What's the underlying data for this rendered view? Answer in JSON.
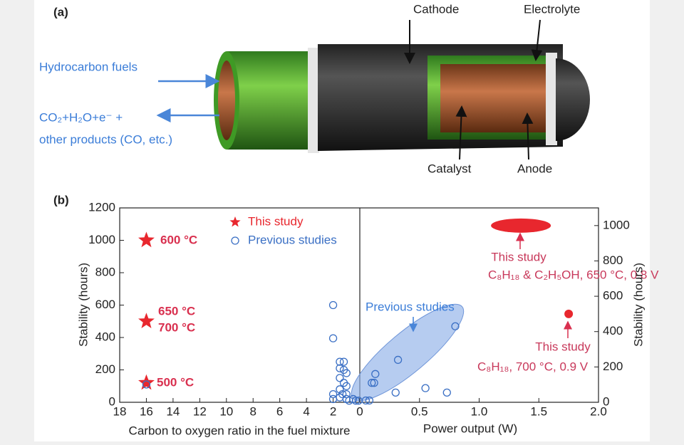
{
  "panel_a": {
    "label": "(a)",
    "cathode": "Cathode",
    "electrolyte": "Electrolyte",
    "fuel_in": "Hydrocarbon fuels",
    "products_line1": "CO₂+H₂O+e⁻ +",
    "products_line2": "other products (CO, etc.)",
    "catalyst": "Catalyst",
    "anode": "Anode"
  },
  "panel_b": {
    "label": "(b)"
  },
  "chart_data": [
    {
      "type": "scatter",
      "xlabel": "Carbon to oxygen ratio in the fuel mixture",
      "ylabel": "Stability (hours)",
      "xlim": [
        18,
        0
      ],
      "xticks": [
        18,
        16,
        14,
        12,
        10,
        8,
        6,
        4,
        2
      ],
      "ylim": [
        0,
        1200
      ],
      "yticks": [
        0,
        200,
        400,
        600,
        800,
        1000,
        1200
      ],
      "legend": "upper right",
      "series": [
        {
          "name": "This study",
          "color": "#e8272e",
          "marker": "star",
          "x": [
            16,
            16,
            16
          ],
          "values": [
            1000,
            500,
            120
          ]
        },
        {
          "name": "Previous studies",
          "color": "#3a6fc4",
          "marker": "circle",
          "x": [
            2,
            2,
            2,
            2,
            1.5,
            1.2,
            1.5,
            1.2,
            1,
            1.5,
            1.2,
            1,
            1.5,
            1.3,
            1,
            1.5,
            1,
            0.5,
            0.8,
            0.3,
            0.1,
            16
          ],
          "values": [
            600,
            395,
            50,
            20,
            250,
            250,
            210,
            200,
            180,
            150,
            120,
            100,
            80,
            50,
            50,
            30,
            20,
            20,
            10,
            10,
            10,
            110
          ]
        }
      ],
      "annotations": [
        "600 °C",
        "650 °C",
        "700 °C",
        "500 °C"
      ]
    },
    {
      "type": "scatter",
      "xlabel": "Power output (W)",
      "y2label": "Stability (hours)",
      "xlim": [
        0,
        2.0
      ],
      "xticks": [
        0,
        0.5,
        {
          "value": 1,
          "label": "1.0"
        },
        1.5,
        {
          "value": 2,
          "label": "2.0"
        }
      ],
      "y2lim": [
        0,
        1100
      ],
      "y2ticks": [
        0,
        200,
        400,
        600,
        800,
        1000
      ],
      "series": [
        {
          "name": "Previous studies",
          "color": "#3a6fc4",
          "marker": "circle",
          "axis": "y2",
          "x": [
            0.05,
            0.08,
            0.1,
            0.12,
            0.13,
            0.3,
            0.32,
            0.55,
            0.73,
            0.8
          ],
          "values": [
            10,
            10,
            110,
            110,
            160,
            55,
            240,
            80,
            55,
            430
          ]
        },
        {
          "name": "This study",
          "color": "#e8272e",
          "marker": "ellipse",
          "axis": "y2",
          "x": [
            1.35
          ],
          "values": [
            1000
          ]
        },
        {
          "name": "This study",
          "color": "#e8272e",
          "marker": "dot",
          "axis": "y2",
          "x": [
            1.75
          ],
          "values": [
            500
          ]
        }
      ],
      "annotations": [
        "C₈H₁₈ & C₂H₅OH, 650 °C, 0.8 V",
        "C₈H₁₈, 700 °C, 0.9 V"
      ]
    }
  ]
}
